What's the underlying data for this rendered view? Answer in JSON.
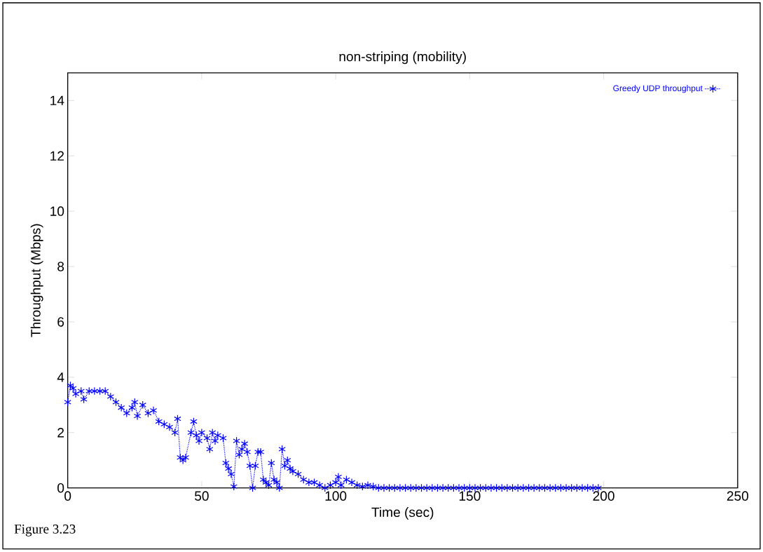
{
  "chart_data": {
    "type": "line",
    "title": "non-striping (mobility)",
    "xlabel": "Time (sec)",
    "ylabel": "Throughput (Mbps)",
    "annotations": [
      "Figure 3.23"
    ],
    "xlim": [
      0,
      250
    ],
    "xticks": [
      0,
      50,
      100,
      150,
      200,
      250
    ],
    "ylim": [
      0,
      15
    ],
    "yticks": [
      0,
      2,
      4,
      6,
      8,
      10,
      12,
      14
    ],
    "grid": false,
    "legend": "top right",
    "marker": "cross",
    "line_style": "dotted",
    "series": [
      {
        "name": "Greedy UDP throughput",
        "color": "#0000ff",
        "x": [
          0,
          1,
          2,
          3,
          5,
          6,
          8,
          10,
          12,
          14,
          16,
          18,
          20,
          22,
          24,
          25,
          26,
          28,
          30,
          32,
          34,
          36,
          38,
          40,
          41,
          42,
          43,
          44,
          46,
          47,
          48,
          49,
          50,
          52,
          53,
          54,
          55,
          56,
          58,
          59,
          60,
          61,
          62,
          63,
          64,
          65,
          66,
          67,
          68,
          69,
          70,
          71,
          72,
          73,
          74,
          75,
          76,
          77,
          78,
          79,
          80,
          81,
          82,
          83,
          84,
          86,
          88,
          90,
          92,
          94,
          96,
          98,
          100,
          101,
          102,
          104,
          106,
          108,
          110,
          112,
          114,
          116,
          118,
          120,
          122,
          124,
          126,
          128,
          130,
          132,
          134,
          136,
          138,
          140,
          142,
          144,
          146,
          148,
          150,
          152,
          154,
          156,
          158,
          160,
          162,
          164,
          166,
          168,
          170,
          172,
          174,
          176,
          178,
          180,
          182,
          184,
          186,
          188,
          190,
          192,
          194,
          196,
          198
        ],
        "values": [
          3.1,
          3.7,
          3.6,
          3.4,
          3.5,
          3.2,
          3.5,
          3.5,
          3.5,
          3.5,
          3.3,
          3.1,
          2.9,
          2.7,
          2.9,
          3.1,
          2.6,
          3.0,
          2.7,
          2.8,
          2.4,
          2.3,
          2.2,
          2.0,
          2.5,
          1.1,
          1.0,
          1.1,
          2.0,
          2.4,
          1.9,
          1.7,
          2.0,
          1.8,
          1.4,
          2.0,
          1.7,
          1.9,
          1.8,
          0.9,
          0.7,
          0.5,
          0.05,
          1.7,
          1.2,
          1.4,
          1.6,
          1.3,
          0.8,
          0.0,
          0.8,
          1.3,
          1.3,
          0.3,
          0.2,
          0.1,
          0.9,
          0.3,
          0.2,
          0.0,
          1.4,
          0.8,
          1.0,
          0.7,
          0.6,
          0.5,
          0.3,
          0.2,
          0.2,
          0.1,
          0.0,
          0.1,
          0.2,
          0.4,
          0.1,
          0.3,
          0.2,
          0.1,
          0.05,
          0.1,
          0.05,
          0,
          0,
          0,
          0,
          0,
          0,
          0,
          0,
          0,
          0,
          0,
          0,
          0,
          0,
          0,
          0,
          0,
          0,
          0,
          0,
          0,
          0,
          0,
          0,
          0,
          0,
          0,
          0,
          0,
          0,
          0,
          0,
          0,
          0,
          0,
          0,
          0,
          0,
          0,
          0,
          0,
          0
        ]
      }
    ]
  }
}
